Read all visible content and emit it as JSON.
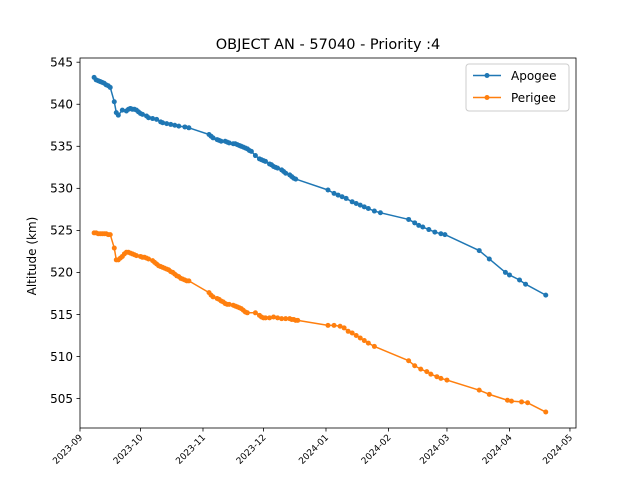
{
  "chart_data": {
    "type": "line",
    "title": "OBJECT AN - 57040 - Priority :4",
    "xlabel": "",
    "ylabel": "Altitude (km)",
    "xlim": [
      "2023-09-01",
      "2024-05-04"
    ],
    "ylim": [
      501.5,
      545.5
    ],
    "x_ticks": [
      "2023-09",
      "2023-10",
      "2023-11",
      "2023-12",
      "2024-01",
      "2024-02",
      "2024-03",
      "2024-04",
      "2024-05"
    ],
    "y_ticks": [
      505,
      510,
      515,
      520,
      525,
      530,
      535,
      540,
      545
    ],
    "grid": false,
    "legend_position": "top-right",
    "series": [
      {
        "name": "Apogee",
        "color": "#1f77b4",
        "points": [
          [
            "2023-09-08",
            543.2
          ],
          [
            "2023-09-09",
            542.9
          ],
          [
            "2023-09-10",
            542.8
          ],
          [
            "2023-09-11",
            542.7
          ],
          [
            "2023-09-12",
            542.6
          ],
          [
            "2023-09-13",
            542.5
          ],
          [
            "2023-09-14",
            542.3
          ],
          [
            "2023-09-15",
            542.2
          ],
          [
            "2023-09-16",
            542.0
          ],
          [
            "2023-09-18",
            540.3
          ],
          [
            "2023-09-19",
            539.0
          ],
          [
            "2023-09-20",
            538.7
          ],
          [
            "2023-09-22",
            539.3
          ],
          [
            "2023-09-24",
            539.2
          ],
          [
            "2023-09-25",
            539.4
          ],
          [
            "2023-09-26",
            539.5
          ],
          [
            "2023-09-27",
            539.4
          ],
          [
            "2023-09-28",
            539.4
          ],
          [
            "2023-09-29",
            539.3
          ],
          [
            "2023-09-30",
            539.1
          ],
          [
            "2023-10-01",
            538.9
          ],
          [
            "2023-10-02",
            538.8
          ],
          [
            "2023-10-04",
            538.6
          ],
          [
            "2023-10-05",
            538.4
          ],
          [
            "2023-10-07",
            538.3
          ],
          [
            "2023-10-09",
            538.2
          ],
          [
            "2023-10-11",
            537.9
          ],
          [
            "2023-10-12",
            537.8
          ],
          [
            "2023-10-14",
            537.7
          ],
          [
            "2023-10-16",
            537.6
          ],
          [
            "2023-10-18",
            537.5
          ],
          [
            "2023-10-20",
            537.4
          ],
          [
            "2023-10-23",
            537.3
          ],
          [
            "2023-10-25",
            537.2
          ],
          [
            "2023-11-04",
            536.4
          ],
          [
            "2023-11-05",
            536.2
          ],
          [
            "2023-11-06",
            536.0
          ],
          [
            "2023-11-08",
            535.8
          ],
          [
            "2023-11-09",
            535.7
          ],
          [
            "2023-11-10",
            535.6
          ],
          [
            "2023-11-12",
            535.6
          ],
          [
            "2023-11-13",
            535.5
          ],
          [
            "2023-11-14",
            535.4
          ],
          [
            "2023-11-16",
            535.3
          ],
          [
            "2023-11-17",
            535.3
          ],
          [
            "2023-11-18",
            535.2
          ],
          [
            "2023-11-19",
            535.1
          ],
          [
            "2023-11-20",
            535.0
          ],
          [
            "2023-11-21",
            534.9
          ],
          [
            "2023-11-22",
            534.8
          ],
          [
            "2023-11-23",
            534.7
          ],
          [
            "2023-11-24",
            534.5
          ],
          [
            "2023-11-25",
            534.4
          ],
          [
            "2023-11-27",
            533.9
          ],
          [
            "2023-11-29",
            533.5
          ],
          [
            "2023-11-30",
            533.4
          ],
          [
            "2023-12-01",
            533.3
          ],
          [
            "2023-12-02",
            533.2
          ],
          [
            "2023-12-04",
            532.9
          ],
          [
            "2023-12-05",
            532.8
          ],
          [
            "2023-12-06",
            532.6
          ],
          [
            "2023-12-07",
            532.5
          ],
          [
            "2023-12-08",
            532.4
          ],
          [
            "2023-12-10",
            532.2
          ],
          [
            "2023-12-11",
            532.0
          ],
          [
            "2023-12-12",
            531.8
          ],
          [
            "2023-12-14",
            531.6
          ],
          [
            "2023-12-15",
            531.4
          ],
          [
            "2023-12-16",
            531.2
          ],
          [
            "2023-12-17",
            531.1
          ],
          [
            "2024-01-02",
            529.8
          ],
          [
            "2024-01-05",
            529.4
          ],
          [
            "2024-01-07",
            529.2
          ],
          [
            "2024-01-09",
            529.0
          ],
          [
            "2024-01-11",
            528.8
          ],
          [
            "2024-01-14",
            528.4
          ],
          [
            "2024-01-16",
            528.2
          ],
          [
            "2024-01-18",
            528.0
          ],
          [
            "2024-01-20",
            527.8
          ],
          [
            "2024-01-22",
            527.6
          ],
          [
            "2024-01-25",
            527.3
          ],
          [
            "2024-01-28",
            527.1
          ],
          [
            "2024-02-11",
            526.3
          ],
          [
            "2024-02-14",
            525.9
          ],
          [
            "2024-02-16",
            525.6
          ],
          [
            "2024-02-18",
            525.4
          ],
          [
            "2024-02-21",
            525.1
          ],
          [
            "2024-02-24",
            524.8
          ],
          [
            "2024-02-27",
            524.6
          ],
          [
            "2024-02-29",
            524.5
          ],
          [
            "2024-03-17",
            522.6
          ],
          [
            "2024-03-22",
            521.6
          ],
          [
            "2024-03-30",
            520.0
          ],
          [
            "2024-04-01",
            519.7
          ],
          [
            "2024-04-06",
            519.1
          ],
          [
            "2024-04-09",
            518.6
          ],
          [
            "2024-04-19",
            517.3
          ]
        ]
      },
      {
        "name": "Perigee",
        "color": "#ff7f0e",
        "points": [
          [
            "2023-09-08",
            524.7
          ],
          [
            "2023-09-09",
            524.7
          ],
          [
            "2023-09-10",
            524.6
          ],
          [
            "2023-09-11",
            524.6
          ],
          [
            "2023-09-12",
            524.6
          ],
          [
            "2023-09-13",
            524.6
          ],
          [
            "2023-09-14",
            524.6
          ],
          [
            "2023-09-15",
            524.5
          ],
          [
            "2023-09-16",
            524.5
          ],
          [
            "2023-09-18",
            522.9
          ],
          [
            "2023-09-19",
            521.5
          ],
          [
            "2023-09-20",
            521.5
          ],
          [
            "2023-09-21",
            521.7
          ],
          [
            "2023-09-22",
            521.9
          ],
          [
            "2023-09-23",
            522.2
          ],
          [
            "2023-09-24",
            522.4
          ],
          [
            "2023-09-25",
            522.4
          ],
          [
            "2023-09-26",
            522.3
          ],
          [
            "2023-09-27",
            522.2
          ],
          [
            "2023-09-28",
            522.1
          ],
          [
            "2023-09-29",
            522.0
          ],
          [
            "2023-10-01",
            521.9
          ],
          [
            "2023-10-02",
            521.8
          ],
          [
            "2023-10-03",
            521.8
          ],
          [
            "2023-10-04",
            521.7
          ],
          [
            "2023-10-05",
            521.6
          ],
          [
            "2023-10-07",
            521.4
          ],
          [
            "2023-10-08",
            521.2
          ],
          [
            "2023-10-09",
            521.0
          ],
          [
            "2023-10-10",
            520.8
          ],
          [
            "2023-10-11",
            520.7
          ],
          [
            "2023-10-12",
            520.6
          ],
          [
            "2023-10-13",
            520.5
          ],
          [
            "2023-10-14",
            520.4
          ],
          [
            "2023-10-15",
            520.3
          ],
          [
            "2023-10-16",
            520.1
          ],
          [
            "2023-10-17",
            520.0
          ],
          [
            "2023-10-18",
            519.8
          ],
          [
            "2023-10-19",
            519.6
          ],
          [
            "2023-10-20",
            519.5
          ],
          [
            "2023-10-21",
            519.3
          ],
          [
            "2023-10-22",
            519.2
          ],
          [
            "2023-10-23",
            519.1
          ],
          [
            "2023-10-24",
            519.0
          ],
          [
            "2023-10-25",
            519.0
          ],
          [
            "2023-11-04",
            517.6
          ],
          [
            "2023-11-05",
            517.3
          ],
          [
            "2023-11-06",
            517.1
          ],
          [
            "2023-11-08",
            516.9
          ],
          [
            "2023-11-09",
            516.8
          ],
          [
            "2023-11-10",
            516.6
          ],
          [
            "2023-11-11",
            516.5
          ],
          [
            "2023-11-12",
            516.3
          ],
          [
            "2023-11-13",
            516.2
          ],
          [
            "2023-11-14",
            516.2
          ],
          [
            "2023-11-16",
            516.1
          ],
          [
            "2023-11-17",
            516.0
          ],
          [
            "2023-11-18",
            515.9
          ],
          [
            "2023-11-19",
            515.8
          ],
          [
            "2023-11-20",
            515.7
          ],
          [
            "2023-11-21",
            515.5
          ],
          [
            "2023-11-22",
            515.3
          ],
          [
            "2023-11-23",
            515.2
          ],
          [
            "2023-11-27",
            515.2
          ],
          [
            "2023-11-29",
            514.9
          ],
          [
            "2023-11-30",
            514.7
          ],
          [
            "2023-12-01",
            514.6
          ],
          [
            "2023-12-02",
            514.6
          ],
          [
            "2023-12-04",
            514.6
          ],
          [
            "2023-12-06",
            514.7
          ],
          [
            "2023-12-08",
            514.6
          ],
          [
            "2023-12-10",
            514.5
          ],
          [
            "2023-12-12",
            514.5
          ],
          [
            "2023-12-14",
            514.5
          ],
          [
            "2023-12-15",
            514.4
          ],
          [
            "2023-12-16",
            514.4
          ],
          [
            "2023-12-17",
            514.3
          ],
          [
            "2023-12-18",
            514.3
          ],
          [
            "2024-01-02",
            513.7
          ],
          [
            "2024-01-05",
            513.7
          ],
          [
            "2024-01-08",
            513.6
          ],
          [
            "2024-01-10",
            513.4
          ],
          [
            "2024-01-12",
            513.0
          ],
          [
            "2024-01-14",
            512.8
          ],
          [
            "2024-01-16",
            512.5
          ],
          [
            "2024-01-18",
            512.2
          ],
          [
            "2024-01-20",
            511.9
          ],
          [
            "2024-01-22",
            511.6
          ],
          [
            "2024-01-25",
            511.2
          ],
          [
            "2024-02-11",
            509.5
          ],
          [
            "2024-02-14",
            508.9
          ],
          [
            "2024-02-17",
            508.5
          ],
          [
            "2024-02-20",
            508.2
          ],
          [
            "2024-02-22",
            507.9
          ],
          [
            "2024-02-25",
            507.6
          ],
          [
            "2024-02-27",
            507.4
          ],
          [
            "2024-03-01",
            507.2
          ],
          [
            "2024-03-17",
            506.0
          ],
          [
            "2024-03-22",
            505.5
          ],
          [
            "2024-03-31",
            504.8
          ],
          [
            "2024-04-02",
            504.7
          ],
          [
            "2024-04-07",
            504.6
          ],
          [
            "2024-04-10",
            504.5
          ],
          [
            "2024-04-19",
            503.4
          ]
        ]
      }
    ]
  }
}
